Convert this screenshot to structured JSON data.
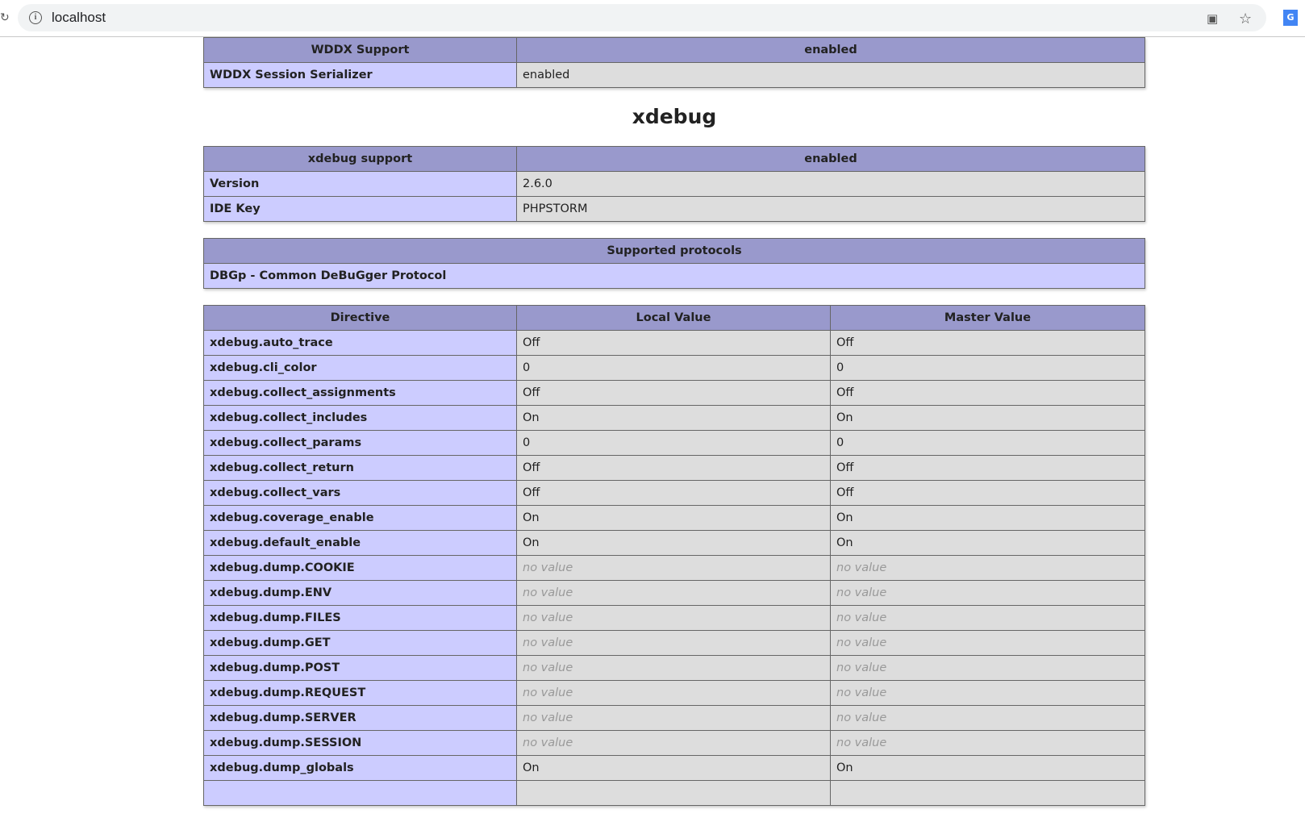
{
  "browser": {
    "url": "localhost",
    "icons": [
      "reload-icon",
      "info-icon",
      "translate-icon",
      "star-icon",
      "google-translate-extension-icon"
    ]
  },
  "wddx": {
    "header": [
      "WDDX Support",
      "enabled"
    ],
    "rows": [
      [
        "WDDX Session Serializer",
        "enabled"
      ]
    ]
  },
  "xdebug_title": "xdebug",
  "xdebug_support": {
    "header": [
      "xdebug support",
      "enabled"
    ],
    "rows": [
      [
        "Version",
        "2.6.0"
      ],
      [
        "IDE Key",
        "PHPSTORM"
      ]
    ]
  },
  "protocols": {
    "header": "Supported protocols",
    "row": "DBGp - Common DeBuGger Protocol"
  },
  "directives": {
    "header": [
      "Directive",
      "Local Value",
      "Master Value"
    ],
    "rows": [
      [
        "xdebug.auto_trace",
        "Off",
        "Off"
      ],
      [
        "xdebug.cli_color",
        "0",
        "0"
      ],
      [
        "xdebug.collect_assignments",
        "Off",
        "Off"
      ],
      [
        "xdebug.collect_includes",
        "On",
        "On"
      ],
      [
        "xdebug.collect_params",
        "0",
        "0"
      ],
      [
        "xdebug.collect_return",
        "Off",
        "Off"
      ],
      [
        "xdebug.collect_vars",
        "Off",
        "Off"
      ],
      [
        "xdebug.coverage_enable",
        "On",
        "On"
      ],
      [
        "xdebug.default_enable",
        "On",
        "On"
      ],
      [
        "xdebug.dump.COOKIE",
        "no value",
        "no value"
      ],
      [
        "xdebug.dump.ENV",
        "no value",
        "no value"
      ],
      [
        "xdebug.dump.FILES",
        "no value",
        "no value"
      ],
      [
        "xdebug.dump.GET",
        "no value",
        "no value"
      ],
      [
        "xdebug.dump.POST",
        "no value",
        "no value"
      ],
      [
        "xdebug.dump.REQUEST",
        "no value",
        "no value"
      ],
      [
        "xdebug.dump.SERVER",
        "no value",
        "no value"
      ],
      [
        "xdebug.dump.SESSION",
        "no value",
        "no value"
      ],
      [
        "xdebug.dump_globals",
        "On",
        "On"
      ]
    ]
  }
}
